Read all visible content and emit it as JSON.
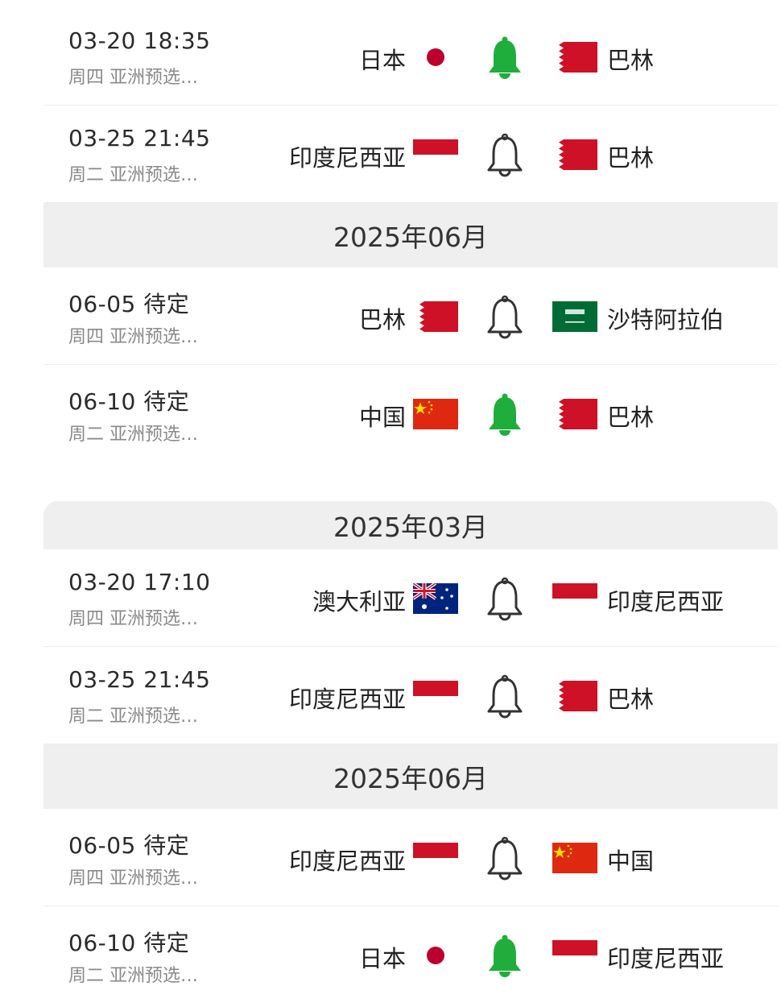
{
  "colors": {
    "bell_on": "#1fae3c",
    "bell_off": "#333333",
    "header_bg": "#efefef"
  },
  "panels": [
    {
      "sections": [
        {
          "header": "",
          "matches": [
            {
              "datetime": "03-20 18:35",
              "sub": "周四 亚洲预选…",
              "home": "日本",
              "home_flag": "japan",
              "away": "巴林",
              "away_flag": "bahrain",
              "bell": "on"
            },
            {
              "datetime": "03-25 21:45",
              "sub": "周二 亚洲预选…",
              "home": "印度尼西亚",
              "home_flag": "indonesia",
              "away": "巴林",
              "away_flag": "bahrain",
              "bell": "off"
            }
          ]
        },
        {
          "header": "2025年06月",
          "matches": [
            {
              "datetime": "06-05 待定",
              "sub": "周四 亚洲预选…",
              "home": "巴林",
              "home_flag": "bahrain",
              "away": "沙特阿拉伯",
              "away_flag": "saudi",
              "bell": "off"
            },
            {
              "datetime": "06-10 待定",
              "sub": "周二 亚洲预选…",
              "home": "中国",
              "home_flag": "china",
              "away": "巴林",
              "away_flag": "bahrain",
              "bell": "on"
            }
          ]
        }
      ]
    },
    {
      "sections": [
        {
          "header": "2025年03月",
          "matches": [
            {
              "datetime": "03-20 17:10",
              "sub": "周四 亚洲预选…",
              "home": "澳大利亚",
              "home_flag": "australia",
              "away": "印度尼西亚",
              "away_flag": "indonesia",
              "bell": "off"
            },
            {
              "datetime": "03-25 21:45",
              "sub": "周二 亚洲预选…",
              "home": "印度尼西亚",
              "home_flag": "indonesia",
              "away": "巴林",
              "away_flag": "bahrain",
              "bell": "off"
            }
          ]
        },
        {
          "header": "2025年06月",
          "matches": [
            {
              "datetime": "06-05 待定",
              "sub": "周四 亚洲预选…",
              "home": "印度尼西亚",
              "home_flag": "indonesia",
              "away": "中国",
              "away_flag": "china",
              "bell": "off"
            },
            {
              "datetime": "06-10 待定",
              "sub": "周二 亚洲预选…",
              "home": "日本",
              "home_flag": "japan",
              "away": "印度尼西亚",
              "away_flag": "indonesia",
              "bell": "on"
            }
          ]
        }
      ]
    }
  ]
}
